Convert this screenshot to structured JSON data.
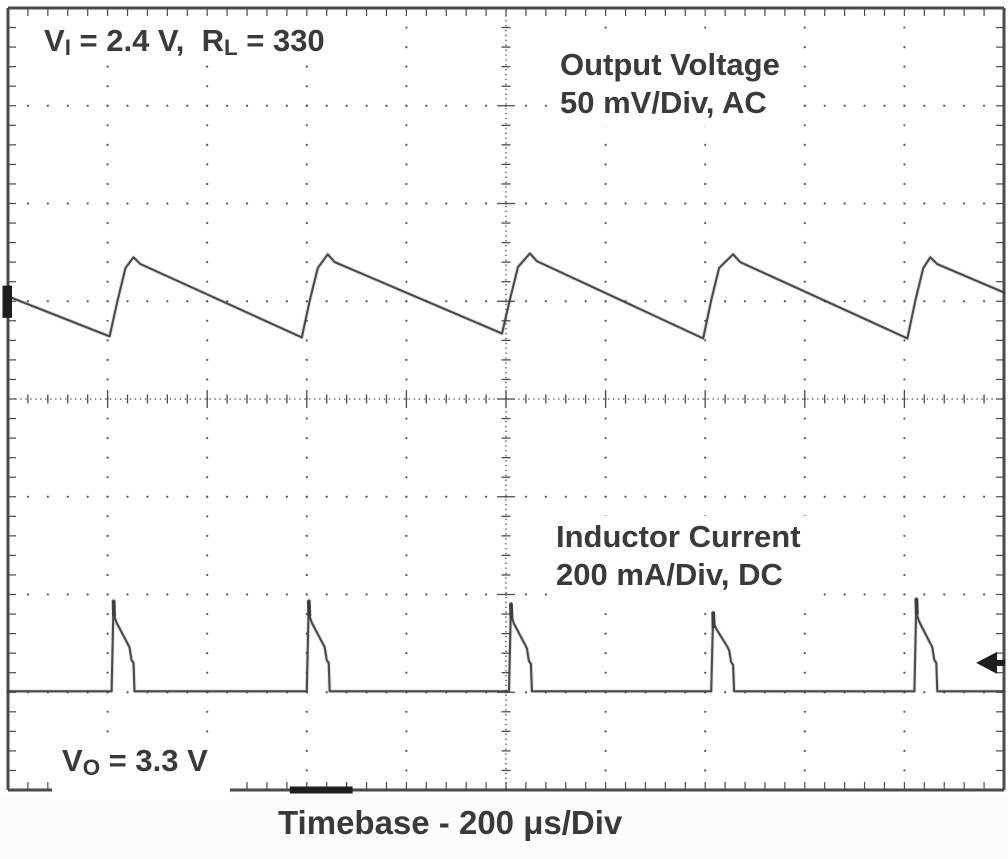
{
  "labels": {
    "conditions": {
      "p1": "V",
      "s1": "I",
      "p2": " = 2.4 V,  R",
      "s2": "L",
      "p3": " = 330"
    },
    "output_voltage": {
      "line1": "Output Voltage",
      "line2": "50 mV/Div, AC"
    },
    "inductor_current": {
      "line1": "Inductor Current",
      "line2": "200 mA/Div, DC"
    },
    "vout": {
      "p1": "V",
      "s1": "O",
      "p2": " = 3.3 V"
    },
    "timebase_caption": "Timebase - 200 μs/Div"
  },
  "colors": {
    "text": "#3a3a3a",
    "grid": "#4a4a4a",
    "grid_dots": "#565656",
    "trace": "#3d3d3d",
    "marker": "#1e1e1e",
    "scope_bg": "#fefefe"
  },
  "chart_data": {
    "type": "line",
    "instrument": "oscilloscope",
    "title": "Switching converter waveforms, VI = 2.4 V, RL = 330, VO = 3.3 V",
    "x_divisions": 10,
    "y_divisions": 8,
    "timebase": "200 μs/Div",
    "timebase_per_div_us": 200,
    "grid": {
      "minor_ticks_per_div": 5,
      "center_axes_cross_ticks": true,
      "dotted_division_lines": true
    },
    "series": [
      {
        "name": "Output Voltage",
        "scale": "50 mV/Div",
        "coupling": "AC",
        "shape": "sawtooth ripple (slow discharge ramp, fast recharge)",
        "period_us": 400,
        "ripple_mVpp": 40,
        "points_div": [
          [
            0.0,
            2.95
          ],
          [
            1.02,
            3.36
          ],
          [
            1.1,
            2.99
          ],
          [
            1.18,
            2.66
          ],
          [
            1.26,
            2.55
          ],
          [
            1.33,
            2.62
          ],
          [
            2.95,
            3.37
          ],
          [
            3.03,
            2.99
          ],
          [
            3.11,
            2.66
          ],
          [
            3.21,
            2.52
          ],
          [
            3.28,
            2.6
          ],
          [
            4.96,
            3.33
          ],
          [
            5.04,
            2.98
          ],
          [
            5.12,
            2.65
          ],
          [
            5.24,
            2.51
          ],
          [
            5.31,
            2.59
          ],
          [
            6.98,
            3.38
          ],
          [
            7.06,
            2.99
          ],
          [
            7.14,
            2.66
          ],
          [
            7.28,
            2.52
          ],
          [
            7.35,
            2.6
          ],
          [
            9.03,
            3.38
          ],
          [
            9.11,
            2.99
          ],
          [
            9.19,
            2.66
          ],
          [
            9.26,
            2.55
          ],
          [
            9.33,
            2.62
          ],
          [
            10.0,
            2.91
          ]
        ]
      },
      {
        "name": "Inductor Current",
        "scale": "200 mA/Div",
        "coupling": "DC",
        "shape": "discontinuous current pulses, zero between bursts",
        "period_us": 400,
        "peak_mA": 190,
        "pulse_width_us": 45,
        "points_div": [
          [
            0.0,
            6.99
          ],
          [
            1.04,
            6.99
          ],
          [
            1.06,
            6.06
          ],
          [
            1.07,
            6.23
          ],
          [
            1.09,
            6.29
          ],
          [
            1.2,
            6.5
          ],
          [
            1.22,
            6.54
          ],
          [
            1.24,
            6.67
          ],
          [
            1.26,
            6.7
          ],
          [
            1.27,
            6.99
          ],
          [
            3.0,
            6.99
          ],
          [
            3.02,
            6.06
          ],
          [
            3.03,
            6.23
          ],
          [
            3.05,
            6.29
          ],
          [
            3.16,
            6.5
          ],
          [
            3.18,
            6.54
          ],
          [
            3.2,
            6.67
          ],
          [
            3.22,
            6.7
          ],
          [
            3.23,
            6.99
          ],
          [
            5.03,
            6.99
          ],
          [
            5.05,
            6.09
          ],
          [
            5.06,
            6.24
          ],
          [
            5.08,
            6.3
          ],
          [
            5.19,
            6.51
          ],
          [
            5.21,
            6.55
          ],
          [
            5.23,
            6.68
          ],
          [
            5.25,
            6.71
          ],
          [
            5.26,
            6.99
          ],
          [
            7.06,
            6.99
          ],
          [
            7.08,
            6.18
          ],
          [
            7.09,
            6.3
          ],
          [
            7.11,
            6.35
          ],
          [
            7.22,
            6.53
          ],
          [
            7.24,
            6.57
          ],
          [
            7.26,
            6.69
          ],
          [
            7.28,
            6.72
          ],
          [
            7.29,
            6.99
          ],
          [
            9.1,
            6.99
          ],
          [
            9.12,
            6.04
          ],
          [
            9.13,
            6.22
          ],
          [
            9.15,
            6.28
          ],
          [
            9.26,
            6.5
          ],
          [
            9.28,
            6.54
          ],
          [
            9.3,
            6.67
          ],
          [
            9.32,
            6.7
          ],
          [
            9.33,
            6.99
          ],
          [
            10.0,
            6.99
          ]
        ],
        "pulse_tips_div": [
          [
            1.06,
            6.06
          ],
          [
            3.02,
            6.06
          ],
          [
            5.05,
            6.09
          ],
          [
            7.08,
            6.18
          ],
          [
            9.12,
            6.04
          ]
        ]
      }
    ],
    "markers": {
      "left_trace_marker": {
        "y1_div": 2.84,
        "y2_div": 3.17
      },
      "right_arrow_marker": {
        "y_div": 6.7,
        "tip_x_div": 9.72,
        "back_x_div": 9.93
      },
      "bottom_thick_segment": {
        "x1_div": 2.83,
        "x2_div": 3.46
      }
    }
  }
}
